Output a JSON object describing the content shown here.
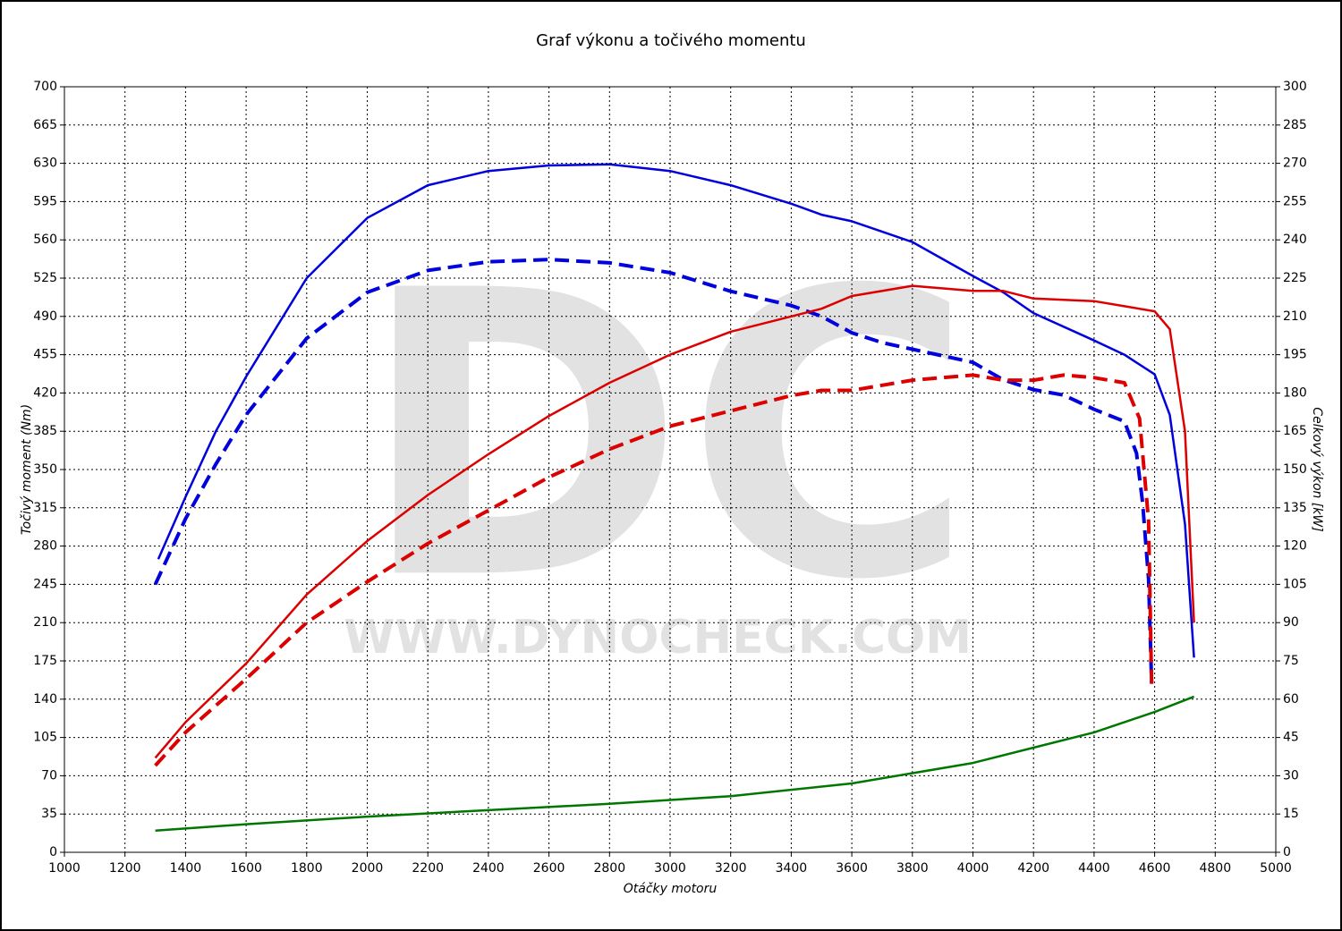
{
  "chart_data": {
    "type": "line",
    "title": "Graf výkonu a točivého momentu",
    "x_label": "Otáčky motoru",
    "y_label": "Točivý moment (Nm)",
    "y2_label": "Celkový výkon [kW]",
    "watermark": [
      "DC",
      "WWW.DYNOCHECK.COM"
    ],
    "xlim": [
      1000,
      5000
    ],
    "xticks": [
      1000,
      1200,
      1400,
      1600,
      1800,
      2000,
      2200,
      2400,
      2600,
      2800,
      3000,
      3200,
      3400,
      3600,
      3800,
      4000,
      4200,
      4400,
      4600,
      4800,
      5000
    ],
    "ylim": [
      0,
      700
    ],
    "yticks": [
      0,
      35,
      70,
      105,
      140,
      175,
      210,
      245,
      280,
      315,
      350,
      385,
      420,
      455,
      490,
      525,
      560,
      595,
      630,
      665,
      700
    ],
    "y2lim": [
      0,
      300
    ],
    "y2ticks": [
      0,
      15,
      30,
      45,
      60,
      75,
      90,
      105,
      120,
      135,
      150,
      165,
      180,
      195,
      210,
      225,
      240,
      255,
      270,
      285,
      300
    ],
    "grid": true,
    "series": [
      {
        "color": "#0000dd",
        "dashed": false,
        "axis": "y",
        "x": [
          1310,
          1400,
          1500,
          1600,
          1800,
          2000,
          2200,
          2400,
          2600,
          2800,
          3000,
          3200,
          3400,
          3500,
          3600,
          3800,
          4000,
          4100,
          4200,
          4400,
          4500,
          4600,
          4650,
          4700,
          4730
        ],
        "values": [
          268,
          325,
          385,
          435,
          525,
          580,
          610,
          623,
          628,
          629,
          623,
          610,
          593,
          583,
          577,
          558,
          527,
          512,
          493,
          468,
          455,
          437,
          400,
          300,
          178
        ]
      },
      {
        "color": "#0000dd",
        "dashed": true,
        "axis": "y",
        "x": [
          1300,
          1400,
          1500,
          1600,
          1800,
          2000,
          2200,
          2400,
          2600,
          2800,
          3000,
          3200,
          3400,
          3500,
          3600,
          3700,
          3800,
          4000,
          4100,
          4200,
          4300,
          4400,
          4500,
          4540,
          4560,
          4580,
          4590
        ],
        "values": [
          245,
          305,
          355,
          400,
          470,
          512,
          532,
          540,
          542,
          539,
          530,
          513,
          500,
          490,
          475,
          466,
          460,
          448,
          432,
          423,
          418,
          405,
          394,
          365,
          320,
          250,
          155
        ]
      },
      {
        "color": "#dd0000",
        "dashed": false,
        "axis": "y2",
        "x": [
          1300,
          1400,
          1600,
          1800,
          2000,
          2200,
          2400,
          2600,
          2800,
          3000,
          3200,
          3400,
          3500,
          3600,
          3800,
          4000,
          4100,
          4200,
          4400,
          4500,
          4600,
          4650,
          4700,
          4730
        ],
        "values": [
          37,
          51,
          74,
          101,
          122,
          140,
          156,
          171,
          184,
          195,
          204,
          210,
          213,
          218,
          222,
          220,
          220,
          217,
          216,
          214,
          212,
          205,
          165,
          90
        ]
      },
      {
        "color": "#dd0000",
        "dashed": true,
        "axis": "y2",
        "x": [
          1300,
          1400,
          1600,
          1800,
          2000,
          2200,
          2400,
          2600,
          2800,
          3000,
          3200,
          3400,
          3500,
          3600,
          3800,
          4000,
          4100,
          4200,
          4300,
          4400,
          4500,
          4550,
          4580,
          4590
        ],
        "values": [
          34,
          47,
          68,
          90,
          106,
          121,
          134,
          147,
          158,
          167,
          173,
          179,
          181,
          181,
          185,
          187,
          185,
          185,
          187,
          186,
          184,
          170,
          130,
          66
        ]
      },
      {
        "color": "#007700",
        "dashed": false,
        "axis": "y2",
        "x": [
          1300,
          1600,
          2000,
          2400,
          2800,
          3200,
          3600,
          4000,
          4200,
          4400,
          4600,
          4730
        ],
        "values": [
          8.5,
          11,
          14,
          16.5,
          19,
          22,
          27,
          35,
          41,
          47,
          55,
          61
        ]
      }
    ]
  }
}
